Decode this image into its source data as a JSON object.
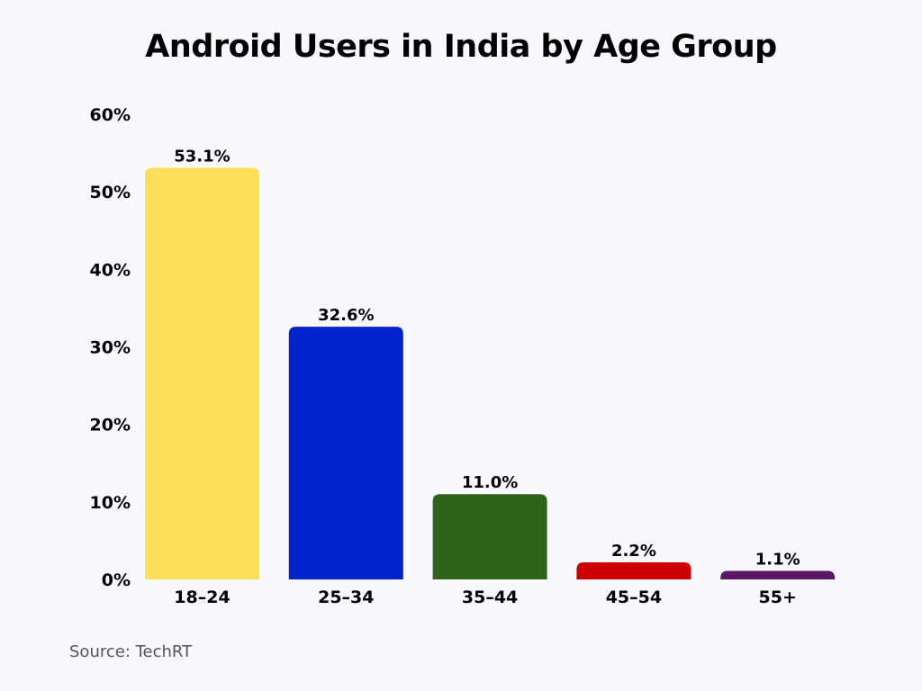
{
  "chart_data": {
    "type": "bar",
    "title": "Android Users in India by Age Group",
    "xlabel": "",
    "ylabel": "",
    "categories": [
      "18–24",
      "25–34",
      "35–44",
      "45–54",
      "55+"
    ],
    "values": [
      53.1,
      32.6,
      11.0,
      2.2,
      1.1
    ],
    "data_labels": [
      "53.1%",
      "32.6%",
      "11.0%",
      "2.2%",
      "1.1%"
    ],
    "colors": [
      "#ffde59",
      "#0022cc",
      "#2e6419",
      "#cc0000",
      "#5a1766"
    ],
    "ylim": [
      0,
      60
    ],
    "yticks": [
      0,
      10,
      20,
      30,
      40,
      50,
      60
    ],
    "ytick_labels": [
      "0%",
      "10%",
      "20%",
      "30%",
      "40%",
      "50%",
      "60%"
    ],
    "grid": false,
    "legend": "none"
  },
  "source": "Source: TechRT"
}
